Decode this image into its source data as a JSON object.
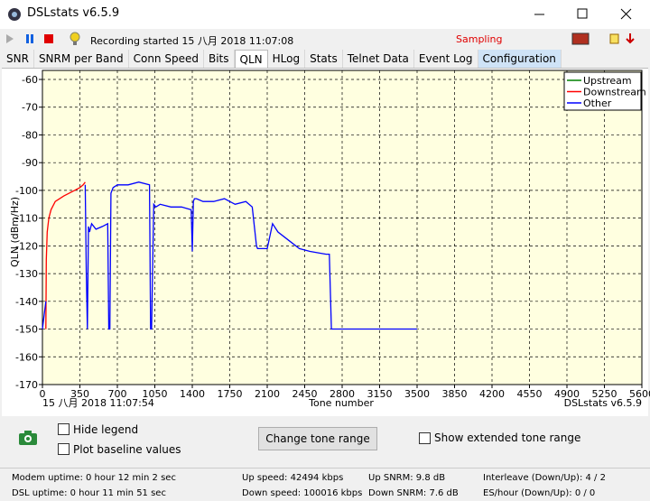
{
  "window": {
    "title": "DSLstats v6.5.9"
  },
  "toolbar": {
    "status": "Recording started 15 八月 2018 11:07:08",
    "sampling": "Sampling"
  },
  "tabs": [
    "SNR",
    "SNRM per Band",
    "Conn Speed",
    "Bits",
    "QLN",
    "HLog",
    "Stats",
    "Telnet Data",
    "Event Log",
    "Configuration"
  ],
  "chart_data": {
    "type": "line",
    "xlabel": "Tone number",
    "ylabel": "QLN (dBm/Hz)",
    "footer_left": "15 八月 2018 11:07:54",
    "footer_right": "DSLstats v6.5.9",
    "xlim": [
      0,
      5600
    ],
    "xticks": [
      0,
      350,
      700,
      1050,
      1400,
      1750,
      2100,
      2450,
      2800,
      3150,
      3500,
      3850,
      4200,
      4550,
      4900,
      5250,
      5600
    ],
    "ylim": [
      -170,
      -60
    ],
    "yticks": [
      -170,
      -160,
      -150,
      -140,
      -130,
      -120,
      -110,
      -100,
      -90,
      -80,
      -70,
      -60
    ],
    "grid": true,
    "legend": "top-right",
    "series": [
      {
        "name": "Upstream",
        "color": "#008000",
        "x": [],
        "values": []
      },
      {
        "name": "Downstream",
        "color": "#ff0000",
        "x": [
          32,
          36,
          45,
          60,
          80,
          120,
          200,
          300,
          350,
          380,
          400
        ],
        "values": [
          -150,
          -125,
          -115,
          -110,
          -107,
          -104,
          -102,
          -100,
          -99,
          -98,
          -97
        ]
      },
      {
        "name": "Other",
        "color": "#0000ff",
        "x": [
          0,
          32,
          200,
          400,
          410,
          420,
          430,
          440,
          460,
          500,
          560,
          610,
          620,
          630,
          640,
          660,
          700,
          800,
          900,
          1000,
          1010,
          1020,
          1040,
          1060,
          1100,
          1200,
          1300,
          1390,
          1400,
          1410,
          1420,
          1440,
          1500,
          1600,
          1700,
          1800,
          1900,
          1960,
          2000,
          2010,
          2100,
          2150,
          2200,
          2300,
          2400,
          2500,
          2650,
          2680,
          2700,
          3500
        ],
        "values": [
          -150,
          -140,
          null,
          -98,
          -130,
          -150,
          -113,
          -115,
          -112,
          -114,
          -113,
          -112,
          -150,
          -150,
          -101,
          -99,
          -98,
          -98,
          -97,
          -98,
          -150,
          -150,
          -105,
          -106,
          -105,
          -106,
          -106,
          -107,
          -122,
          -104,
          -103,
          -103,
          -104,
          -104,
          -103,
          -105,
          -104,
          -106,
          -120,
          -121,
          -121,
          -112,
          -115,
          -118,
          -121,
          -122,
          -123,
          -123,
          -150,
          -150
        ]
      }
    ]
  },
  "controls": {
    "hide_legend": "Hide legend",
    "plot_baseline": "Plot baseline values",
    "change_tone": "Change tone range",
    "extended": "Show extended tone range"
  },
  "status_bar": {
    "modem_uptime": "Modem uptime:  0 hour 12 min 2 sec",
    "dsl_uptime": "DSL uptime:  0 hour 11 min 51 sec",
    "up_speed": "Up speed: 42494 kbps",
    "down_speed": "Down speed: 100016 kbps",
    "up_snrm": "Up SNRM: 9.8 dB",
    "down_snrm": "Down SNRM: 7.6 dB",
    "interleave": "Interleave (Down/Up): 4 / 2",
    "es_hour": "ES/hour (Down/Up): 0 / 0"
  }
}
